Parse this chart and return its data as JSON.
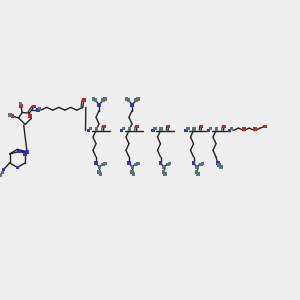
{
  "bg_color": "#eeeeee",
  "bond_color": "#222222",
  "blue": "#3333cc",
  "red": "#cc2222",
  "teal": "#557777",
  "lw": 1.0,
  "sq_size": 0.012,
  "fig_w": 3.0,
  "fig_h": 3.0,
  "dpi": 100
}
